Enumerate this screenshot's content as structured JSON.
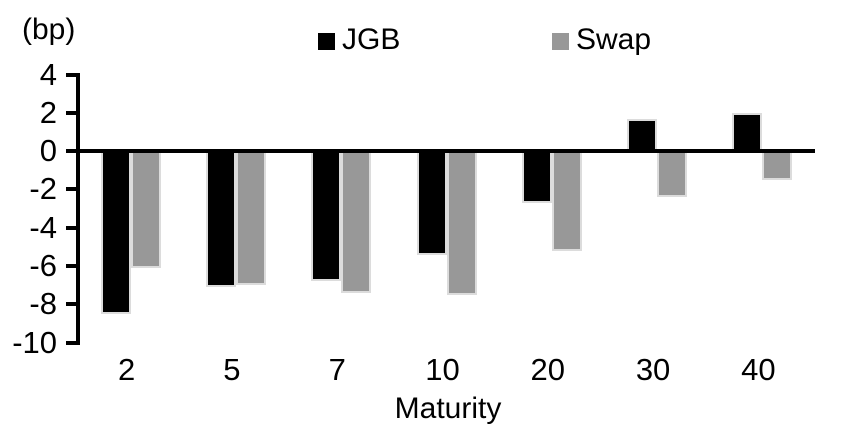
{
  "bp_label": "(bp)",
  "legend": {
    "items": [
      {
        "label": "JGB",
        "color": "#000000"
      },
      {
        "label": "Swap",
        "color": "#989898"
      }
    ]
  },
  "chart_data": {
    "type": "bar",
    "title": "",
    "categories": [
      "2",
      "5",
      "7",
      "10",
      "20",
      "30",
      "40"
    ],
    "series": [
      {
        "name": "JGB",
        "color": "#000000",
        "values": [
          -8.5,
          -7.1,
          -6.8,
          -5.4,
          -2.7,
          1.7,
          2.0
        ]
      },
      {
        "name": "Swap",
        "color": "#989898",
        "values": [
          -6.1,
          -7.0,
          -7.4,
          -7.5,
          -5.2,
          -2.4,
          -1.5
        ]
      }
    ],
    "xlabel": "Maturity",
    "ylabel": "(bp)",
    "ylim": [
      -10,
      4
    ],
    "yticks": [
      4,
      2,
      0,
      -2,
      -4,
      -6,
      -8,
      -10
    ],
    "grid": false,
    "legend_position": "top-center",
    "zero_line": true,
    "axis_color": "#000000"
  }
}
